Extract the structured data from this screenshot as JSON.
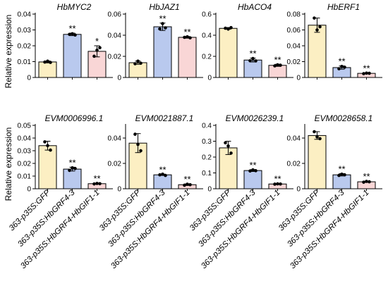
{
  "figure": {
    "ylabel": "Relative expression",
    "categories": [
      "363-p35S:GFP",
      "363-p35S:HbGRF4-3",
      "363-p35S:HbGRF4-HbGIF1-1"
    ],
    "bar_colors": [
      "#fcefc3",
      "#b9c9ee",
      "#f9d6d6"
    ]
  },
  "chart_data": [
    {
      "type": "bar",
      "title": "HbMYC2",
      "ylabel": "Relative expression",
      "categories": [
        "363-p35S:GFP",
        "363-p35S:HbGRF4-3",
        "363-p35S:HbGRF4-HbGIF1-1"
      ],
      "values": [
        0.0098,
        0.0272,
        0.0165
      ],
      "errors": [
        0.0006,
        0.0008,
        0.0035
      ],
      "points": [
        [
          0.0097,
          0.0103,
          0.0095
        ],
        [
          0.0272,
          0.0276,
          0.0268
        ],
        [
          0.0134,
          0.0172,
          0.0188
        ]
      ],
      "significance": [
        "",
        "**",
        "*"
      ],
      "ylim": [
        0,
        0.04
      ],
      "yticks": [
        0,
        0.01,
        0.02,
        0.03,
        0.04
      ],
      "ytick_labels": [
        "0",
        "0.01",
        "0.02",
        "0.03",
        "0.04"
      ]
    },
    {
      "type": "bar",
      "title": "HbJAZ1",
      "ylabel": "",
      "categories": [
        "363-p35S:GFP",
        "363-p35S:HbGRF4-3",
        "363-p35S:HbGRF4-HbGIF1-1"
      ],
      "values": [
        0.014,
        0.048,
        0.038
      ],
      "errors": [
        0.0015,
        0.0035,
        0.0008
      ],
      "points": [
        [
          0.013,
          0.0155,
          0.0135
        ],
        [
          0.046,
          0.051,
          0.047
        ],
        [
          0.038,
          0.0385,
          0.0375
        ]
      ],
      "significance": [
        "",
        "**",
        "**"
      ],
      "ylim": [
        0,
        0.06
      ],
      "yticks": [
        0,
        0.02,
        0.04,
        0.06
      ],
      "ytick_labels": [
        "0",
        "0.02",
        "0.04",
        "0.06"
      ]
    },
    {
      "type": "bar",
      "title": "HbACO4",
      "ylabel": "",
      "categories": [
        "363-p35S:GFP",
        "363-p35S:HbGRF4-3",
        "363-p35S:HbGRF4-HbGIF1-1"
      ],
      "values": [
        0.465,
        0.165,
        0.115
      ],
      "errors": [
        0.008,
        0.018,
        0.01
      ],
      "points": [
        [
          0.466,
          0.458,
          0.472
        ],
        [
          0.158,
          0.18,
          0.157
        ],
        [
          0.11,
          0.12,
          0.116
        ]
      ],
      "significance": [
        "",
        "**",
        "**"
      ],
      "ylim": [
        0,
        0.6
      ],
      "yticks": [
        0,
        0.2,
        0.4,
        0.6
      ],
      "ytick_labels": [
        "0",
        "0.2",
        "0.4",
        "0.6"
      ]
    },
    {
      "type": "bar",
      "title": "HbERF1",
      "ylabel": "",
      "categories": [
        "363-p35S:GFP",
        "363-p35S:HbGRF4-3",
        "363-p35S:HbGRF4-HbGIF1-1"
      ],
      "values": [
        0.066,
        0.0125,
        0.0052
      ],
      "errors": [
        0.009,
        0.002,
        0.0006
      ],
      "points": [
        [
          0.075,
          0.06,
          0.064
        ],
        [
          0.011,
          0.014,
          0.013
        ],
        [
          0.0048,
          0.0055,
          0.0053
        ]
      ],
      "significance": [
        "",
        "**",
        "**"
      ],
      "ylim": [
        0,
        0.08
      ],
      "yticks": [
        0,
        0.02,
        0.04,
        0.06,
        0.08
      ],
      "ytick_labels": [
        "0",
        "0.02",
        "0.04",
        "0.06",
        "0.08"
      ]
    },
    {
      "type": "bar",
      "title": "EVM0006996.1",
      "ylabel": "Relative expression",
      "categories": [
        "363-p35S:GFP",
        "363-p35S:HbGRF4-3",
        "363-p35S:HbGRF4-HbGIF1-1"
      ],
      "values": [
        0.034,
        0.0155,
        0.004
      ],
      "errors": [
        0.0035,
        0.0015,
        0.0004
      ],
      "points": [
        [
          0.037,
          0.034,
          0.0305
        ],
        [
          0.0145,
          0.0165,
          0.016
        ],
        [
          0.0038,
          0.0042,
          0.004
        ]
      ],
      "significance": [
        "",
        "**",
        "**"
      ],
      "ylim": [
        0,
        0.05
      ],
      "yticks": [
        0,
        0.01,
        0.02,
        0.03,
        0.04,
        0.05
      ],
      "ytick_labels": [
        "0",
        "0.01",
        "0.02",
        "0.03",
        "0.04",
        "0.05"
      ]
    },
    {
      "type": "bar",
      "title": "EVM0021887.1",
      "ylabel": "",
      "categories": [
        "363-p35S:GFP",
        "363-p35S:HbGRF4-3",
        "363-p35S:HbGRF4-HbGIF1-1"
      ],
      "values": [
        0.036,
        0.011,
        0.0032
      ],
      "errors": [
        0.0075,
        0.0005,
        0.0006
      ],
      "points": [
        [
          0.043,
          0.035,
          0.03
        ],
        [
          0.011,
          0.0115,
          0.0105
        ],
        [
          0.0028,
          0.0036,
          0.0032
        ]
      ],
      "significance": [
        "",
        "**",
        "**"
      ],
      "ylim": [
        0,
        0.05
      ],
      "yticks": [
        0,
        0.02,
        0.04
      ],
      "ytick_labels": [
        "0",
        "0.02",
        "0.04"
      ]
    },
    {
      "type": "bar",
      "title": "EVM0026239.1",
      "ylabel": "",
      "categories": [
        "363-p35S:GFP",
        "363-p35S:HbGRF4-3",
        "363-p35S:HbGRF4-HbGIF1-1"
      ],
      "values": [
        0.258,
        0.115,
        0.03
      ],
      "errors": [
        0.042,
        0.006,
        0.003
      ],
      "points": [
        [
          0.29,
          0.27,
          0.225
        ],
        [
          0.112,
          0.119,
          0.114
        ],
        [
          0.029,
          0.031,
          0.03
        ]
      ],
      "significance": [
        "",
        "**",
        "**"
      ],
      "ylim": [
        0,
        0.4
      ],
      "yticks": [
        0,
        0.1,
        0.2,
        0.3,
        0.4
      ],
      "ytick_labels": [
        "0",
        "0.1",
        "0.2",
        "0.3",
        "0.4"
      ]
    },
    {
      "type": "bar",
      "title": "EVM0028658.1",
      "ylabel": "",
      "categories": [
        "363-p35S:GFP",
        "363-p35S:HbGRF4-3",
        "363-p35S:HbGRF4-HbGIF1-1"
      ],
      "values": [
        0.042,
        0.011,
        0.0055
      ],
      "errors": [
        0.003,
        0.0009,
        0.0005
      ],
      "points": [
        [
          0.045,
          0.041,
          0.0395
        ],
        [
          0.0105,
          0.0115,
          0.011
        ],
        [
          0.0052,
          0.0058,
          0.0055
        ]
      ],
      "significance": [
        "",
        "**",
        "**"
      ],
      "ylim": [
        0,
        0.05
      ],
      "yticks": [
        0,
        0.02,
        0.04
      ],
      "ytick_labels": [
        "0",
        "0.02",
        "0.04"
      ]
    }
  ]
}
